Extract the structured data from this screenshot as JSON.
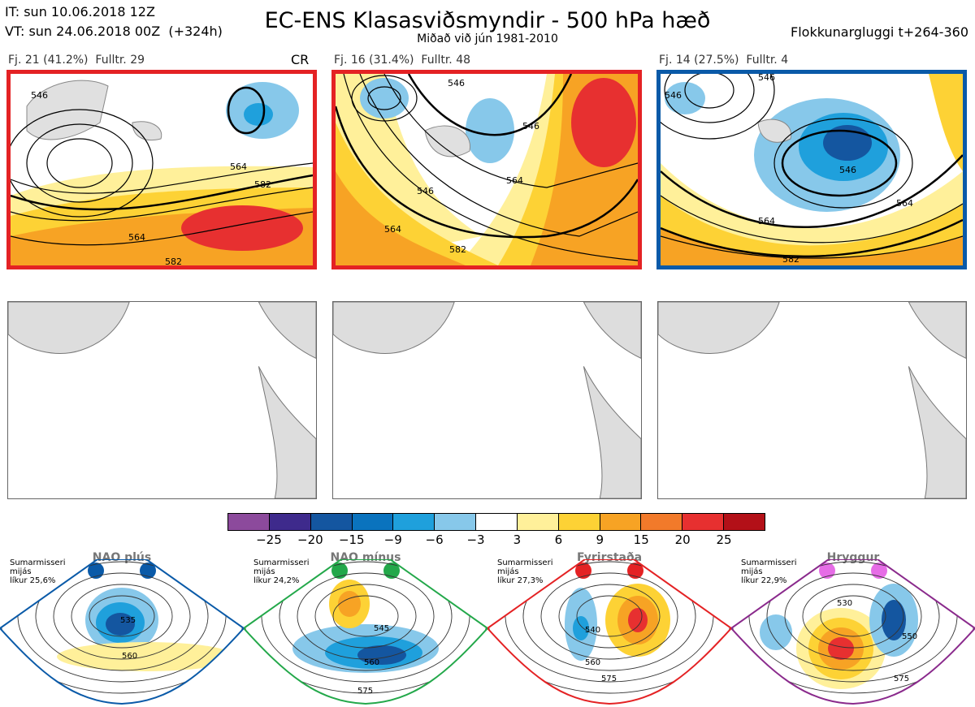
{
  "header": {
    "init_line": "IT: sun 10.06.2018 12Z",
    "valid_line": "VT: sun 24.06.2018 00Z  (+324h)",
    "title": "EC-ENS Klasasviðsmyndir - 500 hPa hæð",
    "subtitle": "Miðað við jún 1981-2010",
    "window": "Flokkunargluggi t+264-360"
  },
  "clusters": [
    {
      "label": "Fj. 21 (41.2%)  Fulltr. 29",
      "tag": "CR",
      "frame_color": "#e42224",
      "contours": [
        "546",
        "564",
        "582",
        "564",
        "582"
      ]
    },
    {
      "label": "Fj. 16 (31.4%)  Fulltr. 48",
      "tag": "",
      "frame_color": "#e42224",
      "contours": [
        "546",
        "546",
        "546",
        "564",
        "564",
        "582"
      ]
    },
    {
      "label": "Fj. 14 (27.5%)  Fulltr. 4",
      "tag": "",
      "frame_color": "#0a5aa8",
      "contours": [
        "546",
        "546",
        "546",
        "564",
        "564",
        "582"
      ]
    }
  ],
  "colorbar": {
    "colors": [
      "#8c4a9c",
      "#3e2a8c",
      "#1456a0",
      "#0a73be",
      "#1fa0dc",
      "#87c8ea",
      "#ffffff",
      "#fff09a",
      "#fdd235",
      "#f7a324",
      "#f27a2a",
      "#e73030",
      "#b31018"
    ],
    "ticks": [
      "−25",
      "−20",
      "−15",
      "−9",
      "−6",
      "−3",
      "3",
      "6",
      "9",
      "15",
      "20",
      "25"
    ]
  },
  "regimes": [
    {
      "name": "NAO plús",
      "info": "Sumarmisseri\nmijás\nlíkur 25,6%",
      "dot_color": "#0a5aa8",
      "frame_color": "#0a5aa8",
      "contours": [
        "535",
        "560"
      ]
    },
    {
      "name": "NAO mínus",
      "info": "Sumarmisseri\nmijás\nlíkur 24,2%",
      "dot_color": "#23a84a",
      "frame_color": "#23a84a",
      "contours": [
        "545",
        "560",
        "575"
      ]
    },
    {
      "name": "Fyrirstaða",
      "info": "Sumarmisseri\nmijás\nlíkur 27,3%",
      "dot_color": "#e42224",
      "frame_color": "#e42224",
      "contours": [
        "540",
        "560",
        "575"
      ]
    },
    {
      "name": "Hryggur",
      "info": "Sumarmisseri\nmijás\nlíkur 22,9%",
      "dot_color": "#e66ce6",
      "frame_color": "#8a2a8c",
      "contours": [
        "530",
        "550",
        "575"
      ]
    }
  ]
}
